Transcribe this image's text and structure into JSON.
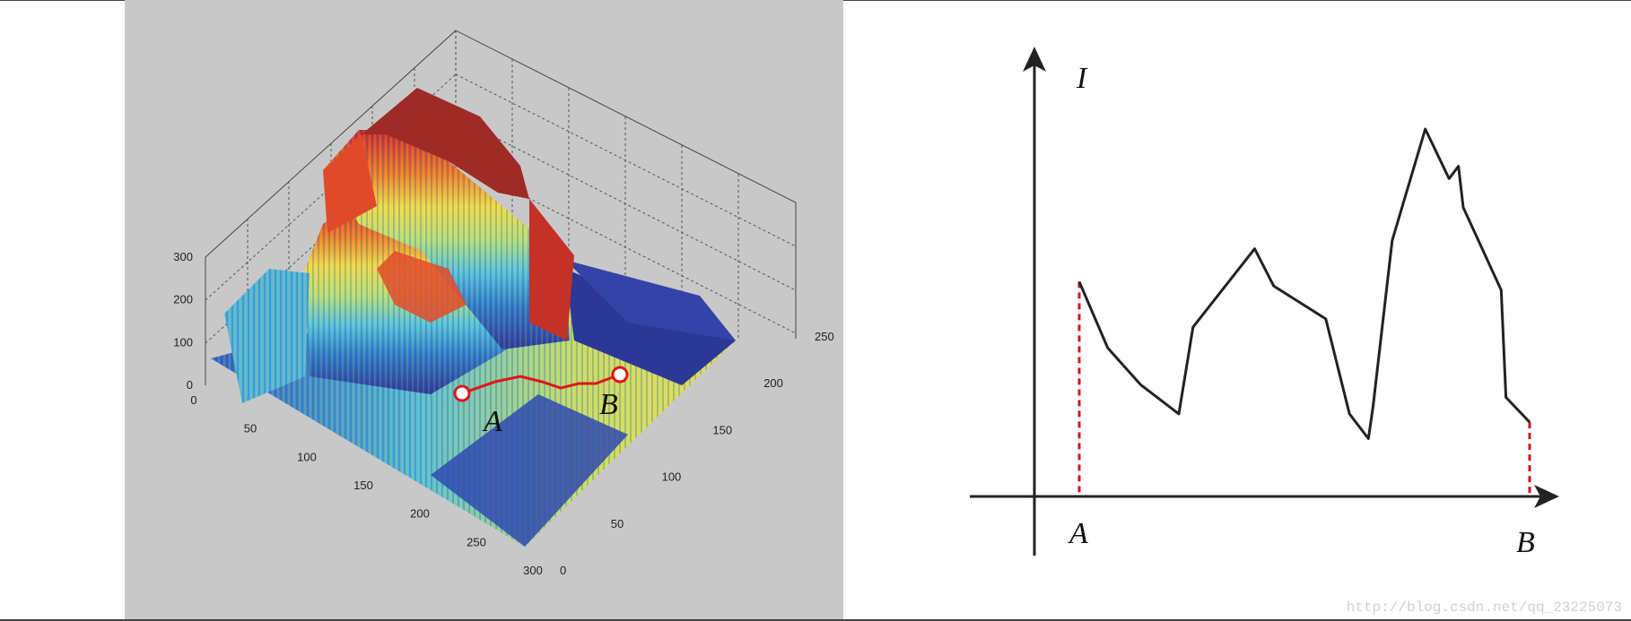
{
  "colors": {
    "panel_background": "#c8c8c8",
    "surface_high": "#9e2b26",
    "surface_low": "#2c3a9b",
    "path_line": "#e0141c",
    "profile_line": "#222222",
    "marker_dashes": "#d4141c"
  },
  "chart_data": [
    {
      "type": "surface",
      "x_ticks": [
        "0",
        "50",
        "100",
        "150",
        "200",
        "250",
        "300"
      ],
      "y_ticks": [
        "0",
        "50",
        "100",
        "150",
        "200",
        "250"
      ],
      "z_ticks": [
        "0",
        "100",
        "200",
        "300"
      ],
      "xlim": [
        0,
        300
      ],
      "ylim": [
        0,
        250
      ],
      "zlim": [
        0,
        300
      ],
      "grid": true,
      "colormap": "jet",
      "path_labels": [
        "A",
        "B"
      ]
    },
    {
      "type": "line",
      "y_axis_label": "I",
      "x_axis_labels": [
        "A",
        "B"
      ],
      "points": [
        [
          0.0,
          0.52
        ],
        [
          0.06,
          0.36
        ],
        [
          0.13,
          0.27
        ],
        [
          0.21,
          0.2
        ],
        [
          0.24,
          0.41
        ],
        [
          0.37,
          0.6
        ],
        [
          0.41,
          0.51
        ],
        [
          0.52,
          0.43
        ],
        [
          0.57,
          0.2
        ],
        [
          0.61,
          0.14
        ],
        [
          0.62,
          0.22
        ],
        [
          0.66,
          0.62
        ],
        [
          0.73,
          0.89
        ],
        [
          0.78,
          0.77
        ],
        [
          0.8,
          0.8
        ],
        [
          0.81,
          0.7
        ],
        [
          0.89,
          0.5
        ],
        [
          0.9,
          0.24
        ],
        [
          0.95,
          0.18
        ]
      ]
    }
  ],
  "watermark": "http://blog.csdn.net/qq_23225073"
}
